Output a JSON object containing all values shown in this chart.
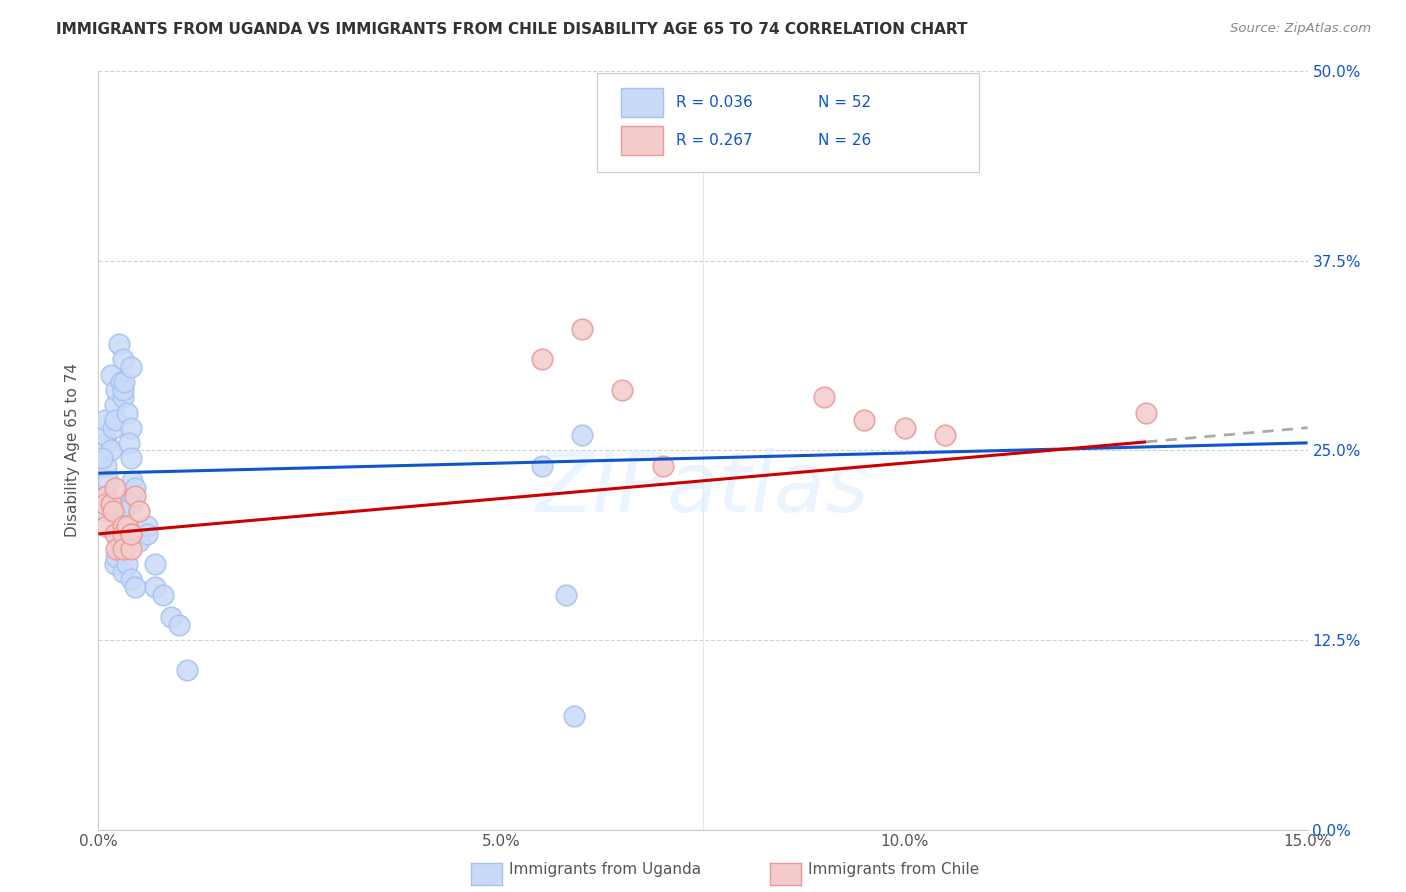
{
  "title": "IMMIGRANTS FROM UGANDA VS IMMIGRANTS FROM CHILE DISABILITY AGE 65 TO 74 CORRELATION CHART",
  "source": "Source: ZipAtlas.com",
  "ylabel": "Disability Age 65 to 74",
  "legend_label_1": "Immigrants from Uganda",
  "legend_label_2": "Immigrants from Chile",
  "R1": 0.036,
  "N1": 52,
  "R2": 0.267,
  "N2": 26,
  "xlim": [
    0.0,
    0.15
  ],
  "ylim": [
    0.0,
    0.5
  ],
  "color_uganda": "#a4c2f4",
  "color_chile": "#ea9999",
  "color_uganda_fill": "#c9daf8",
  "color_chile_fill": "#f4cccc",
  "color_uganda_line": "#1155cc",
  "color_chile_line": "#cc0000",
  "background_color": "#ffffff",
  "watermark_text": "ZIPatlas",
  "uganda_x": [
    0.001,
    0.0008,
    0.001,
    0.0015,
    0.001,
    0.0012,
    0.001,
    0.0005,
    0.0008,
    0.0018,
    0.002,
    0.0015,
    0.0022,
    0.002,
    0.0025,
    0.003,
    0.0028,
    0.003,
    0.0035,
    0.003,
    0.0032,
    0.004,
    0.004,
    0.0038,
    0.004,
    0.0042,
    0.004,
    0.0045,
    0.004,
    0.003,
    0.0035,
    0.003,
    0.0025,
    0.002,
    0.0022,
    0.003,
    0.0035,
    0.004,
    0.0045,
    0.005,
    0.006,
    0.006,
    0.007,
    0.007,
    0.008,
    0.009,
    0.01,
    0.011,
    0.055,
    0.06,
    0.058,
    0.059
  ],
  "uganda_y": [
    0.255,
    0.26,
    0.24,
    0.25,
    0.22,
    0.23,
    0.21,
    0.245,
    0.27,
    0.265,
    0.28,
    0.3,
    0.29,
    0.27,
    0.32,
    0.31,
    0.295,
    0.285,
    0.275,
    0.29,
    0.295,
    0.305,
    0.265,
    0.255,
    0.22,
    0.23,
    0.215,
    0.225,
    0.245,
    0.21,
    0.2,
    0.195,
    0.19,
    0.175,
    0.18,
    0.17,
    0.175,
    0.165,
    0.16,
    0.19,
    0.2,
    0.195,
    0.175,
    0.16,
    0.155,
    0.14,
    0.135,
    0.105,
    0.24,
    0.26,
    0.155,
    0.075
  ],
  "chile_x": [
    0.001,
    0.0008,
    0.001,
    0.0015,
    0.002,
    0.0018,
    0.002,
    0.0022,
    0.003,
    0.003,
    0.003,
    0.0035,
    0.004,
    0.004,
    0.0045,
    0.004,
    0.005,
    0.055,
    0.06,
    0.065,
    0.07,
    0.09,
    0.095,
    0.1,
    0.105,
    0.13
  ],
  "chile_y": [
    0.22,
    0.215,
    0.2,
    0.215,
    0.225,
    0.21,
    0.195,
    0.185,
    0.2,
    0.195,
    0.185,
    0.2,
    0.195,
    0.185,
    0.22,
    0.195,
    0.21,
    0.31,
    0.33,
    0.29,
    0.24,
    0.285,
    0.27,
    0.265,
    0.26,
    0.275
  ],
  "uganda_line_x0": 0.0,
  "uganda_line_x1": 0.15,
  "uganda_line_y0": 0.235,
  "uganda_line_y1": 0.255,
  "chile_line_x0": 0.0,
  "chile_line_x1": 0.15,
  "chile_line_y0": 0.195,
  "chile_line_y1": 0.265
}
